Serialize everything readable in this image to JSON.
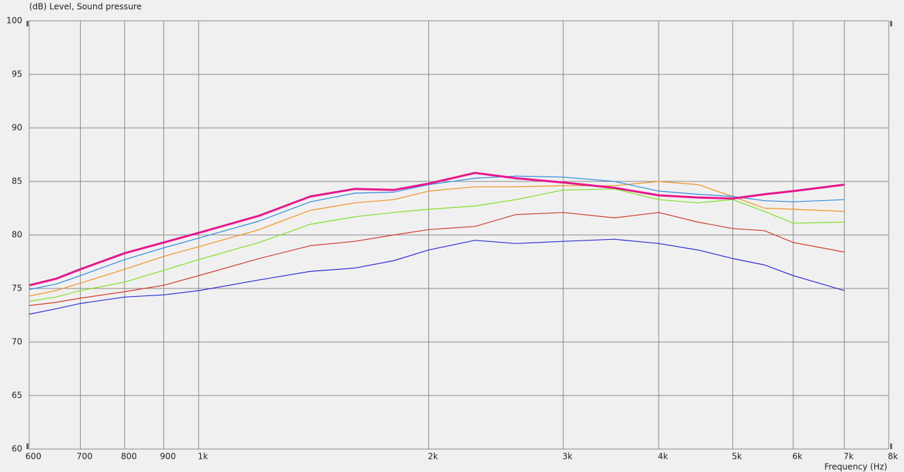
{
  "chart_data": {
    "type": "line",
    "title": "(dB)  Level, Sound pressure",
    "x_label": "Frequency  (Hz)",
    "x_scale": "log",
    "grid": true,
    "x": [
      600,
      650,
      700,
      800,
      900,
      1000,
      1200,
      1400,
      1600,
      1800,
      2000,
      2300,
      2600,
      3000,
      3500,
      4000,
      4500,
      5000,
      5500,
      6000,
      7000
    ],
    "series": [
      {
        "color": "#2b2bd6",
        "values": [
          72.6,
          73.1,
          73.6,
          74.2,
          74.4,
          74.8,
          75.8,
          76.6,
          76.9,
          77.6,
          78.6,
          79.5,
          79.2,
          79.4,
          79.6,
          79.2,
          78.6,
          77.8,
          77.2,
          76.2,
          74.8
        ]
      },
      {
        "color": "#d03a2a",
        "values": [
          73.4,
          73.7,
          74.1,
          74.7,
          75.3,
          76.2,
          77.8,
          79.0,
          79.4,
          80.0,
          80.5,
          80.8,
          81.9,
          82.1,
          81.6,
          82.1,
          81.2,
          80.6,
          80.4,
          79.3,
          78.4
        ]
      },
      {
        "color": "#7ee020",
        "values": [
          73.8,
          74.2,
          74.8,
          75.6,
          76.7,
          77.7,
          79.3,
          81.0,
          81.7,
          82.1,
          82.4,
          82.7,
          83.3,
          84.2,
          84.3,
          83.3,
          83.0,
          83.3,
          82.2,
          81.1,
          81.2
        ]
      },
      {
        "color": "#f0901a",
        "values": [
          74.3,
          74.8,
          75.5,
          76.8,
          78.0,
          78.9,
          80.5,
          82.3,
          83.0,
          83.3,
          84.1,
          84.5,
          84.5,
          84.6,
          84.6,
          85.0,
          84.7,
          83.6,
          82.5,
          82.4,
          82.2
        ]
      },
      {
        "color": "#2a8ae0",
        "values": [
          74.9,
          75.4,
          76.2,
          77.7,
          78.8,
          79.7,
          81.3,
          83.1,
          83.9,
          84.0,
          84.7,
          85.3,
          85.5,
          85.4,
          85.0,
          84.1,
          83.8,
          83.6,
          83.2,
          83.1,
          83.3
        ]
      },
      {
        "color": "#e8158c",
        "width": 3,
        "values": [
          75.3,
          75.9,
          76.8,
          78.3,
          79.3,
          80.2,
          81.8,
          83.6,
          84.3,
          84.2,
          84.8,
          85.8,
          85.3,
          84.9,
          84.4,
          83.7,
          83.5,
          83.4,
          83.8,
          84.1,
          84.7
        ]
      }
    ],
    "xlim": [
      600,
      8000
    ],
    "xticks": [
      600,
      700,
      800,
      900,
      {
        "value": 1000,
        "label": "1k"
      },
      {
        "value": 2000,
        "label": "2k"
      },
      {
        "value": 3000,
        "label": "3k"
      },
      {
        "value": 4000,
        "label": "4k"
      },
      {
        "value": 5000,
        "label": "5k"
      },
      {
        "value": 6000,
        "label": "6k"
      },
      {
        "value": 7000,
        "label": "7k"
      },
      {
        "value": 8000,
        "label": "8k"
      }
    ],
    "ylim": [
      60,
      100
    ],
    "yticks": [
      60,
      65,
      70,
      75,
      80,
      85,
      90,
      95,
      100
    ]
  }
}
